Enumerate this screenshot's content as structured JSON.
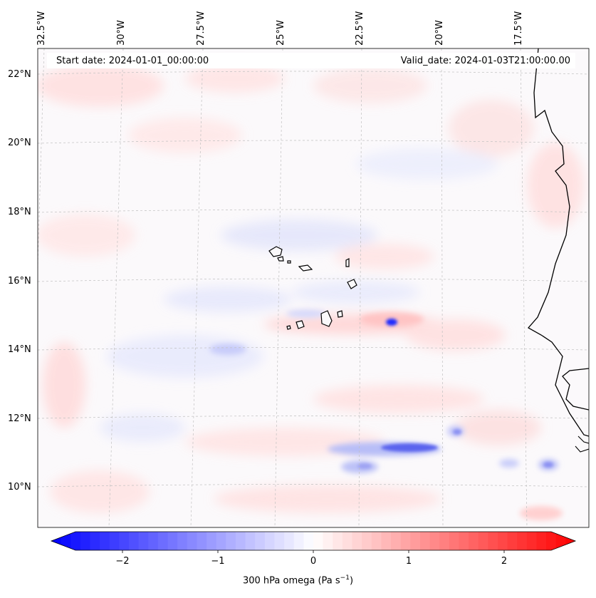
{
  "header": {
    "start_date": "Start date: 2024-01-01_00:00:00",
    "valid_date": "Valid_date: 2024-01-03T21:00:00.00"
  },
  "map": {
    "longitude_labels": [
      "32.5°W",
      "30°W",
      "27.5°W",
      "25°W",
      "22.5°W",
      "20°W",
      "17.5°W"
    ],
    "latitude_labels": [
      "22°N",
      "20°N",
      "18°N",
      "16°N",
      "14°N",
      "12°N",
      "10°N"
    ],
    "colormap": "bwr",
    "neutral_color": "#ffffff",
    "positive_color": "#ff0000",
    "negative_color": "#0000ff",
    "coastline_color": "#000000"
  },
  "colorbar": {
    "tick_labels": [
      "−2",
      "−1",
      "0",
      "1",
      "2"
    ],
    "label": "300 hPa omega (Pa s",
    "label_superscript": "−1",
    "label_suffix": ")",
    "range": [
      -2.7,
      2.7
    ]
  }
}
